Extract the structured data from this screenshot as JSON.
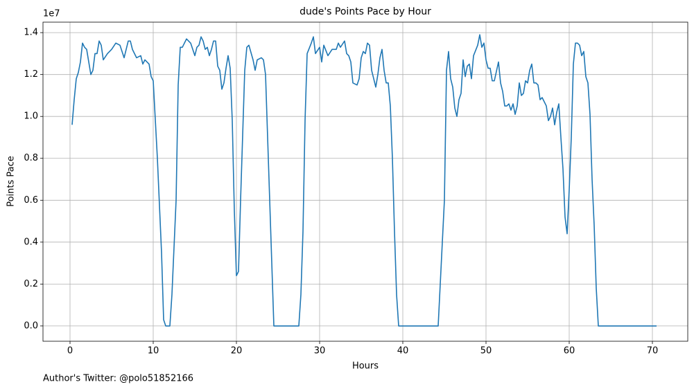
{
  "chart_data": {
    "type": "line",
    "title": "dude's Points Pace by Hour",
    "x_label": "Hours",
    "y_label": "Points Pace",
    "y_offset_label": "1e7",
    "footnote": "Author's Twitter: @polo51852166",
    "color": "#1f77b4",
    "grid": true,
    "xlim": [
      -3.25,
      74.25
    ],
    "ylim": [
      -0.073,
      1.45
    ],
    "xticks": [
      0,
      10,
      20,
      30,
      40,
      50,
      60,
      70
    ],
    "yticks": [
      {
        "value": 0,
        "label": "0.0"
      },
      0.2,
      0.4,
      0.6,
      0.8,
      {
        "value": 1,
        "label": "1.0"
      },
      1.2,
      1.4
    ],
    "x": [
      0.25,
      0.5,
      0.75,
      1,
      1.25,
      1.5,
      1.75,
      2,
      2.25,
      2.5,
      2.75,
      3,
      3.25,
      3.5,
      3.75,
      4,
      4.5,
      5,
      5.5,
      6,
      6.5,
      7,
      7.25,
      7.5,
      8,
      8.5,
      8.75,
      9,
      9.5,
      9.75,
      10,
      10.5,
      11,
      11.25,
      11.5,
      12,
      12.25,
      12.75,
      13,
      13.25,
      13.5,
      14,
      14.5,
      15,
      15.25,
      15.5,
      15.75,
      16,
      16.25,
      16.5,
      16.75,
      17,
      17.25,
      17.5,
      17.75,
      18,
      18.25,
      18.5,
      18.75,
      19,
      19.25,
      19.5,
      19.75,
      20,
      20.25,
      20.5,
      21,
      21.25,
      21.5,
      22,
      22.25,
      22.5,
      23,
      23.25,
      23.5,
      24,
      24.25,
      24.5,
      27.5,
      27.75,
      28,
      28.25,
      28.5,
      29,
      29.25,
      29.5,
      30,
      30.25,
      30.5,
      31,
      31.5,
      32,
      32.25,
      32.5,
      33,
      33.25,
      33.5,
      33.75,
      34,
      34.5,
      34.75,
      35,
      35.25,
      35.5,
      35.75,
      36,
      36.25,
      36.75,
      37,
      37.25,
      37.5,
      37.75,
      38,
      38.25,
      38.5,
      38.75,
      39,
      39.25,
      39.5,
      44.25,
      44.5,
      45,
      45.25,
      45.5,
      45.75,
      46,
      46.25,
      46.5,
      46.75,
      47,
      47.25,
      47.5,
      47.75,
      48,
      48.25,
      48.5,
      49,
      49.25,
      49.5,
      49.75,
      50,
      50.25,
      50.5,
      50.75,
      51,
      51.5,
      51.75,
      52,
      52.25,
      52.5,
      52.75,
      53,
      53.25,
      53.5,
      53.75,
      54,
      54.25,
      54.5,
      54.75,
      55,
      55.25,
      55.5,
      55.75,
      56,
      56.25,
      56.5,
      56.75,
      57,
      57.25,
      57.5,
      57.75,
      58,
      58.25,
      58.5,
      58.75,
      59,
      59.25,
      59.5,
      59.75,
      60,
      60.25,
      60.5,
      60.75,
      61,
      61.25,
      61.5,
      61.75,
      62,
      62.25,
      62.5,
      62.75,
      63,
      63.25,
      63.5,
      70.5
    ],
    "values": [
      0.96,
      1.08,
      1.18,
      1.21,
      1.26,
      1.35,
      1.33,
      1.32,
      1.26,
      1.2,
      1.22,
      1.3,
      1.3,
      1.36,
      1.34,
      1.27,
      1.3,
      1.32,
      1.35,
      1.34,
      1.28,
      1.36,
      1.36,
      1.32,
      1.28,
      1.29,
      1.25,
      1.27,
      1.25,
      1.19,
      1.17,
      0.8,
      0.35,
      0.03,
      0,
      0,
      0.15,
      0.6,
      1.15,
      1.33,
      1.33,
      1.37,
      1.35,
      1.29,
      1.33,
      1.34,
      1.38,
      1.36,
      1.32,
      1.33,
      1.29,
      1.32,
      1.36,
      1.36,
      1.24,
      1.22,
      1.13,
      1.16,
      1.23,
      1.29,
      1.23,
      0.98,
      0.55,
      0.24,
      0.26,
      0.6,
      1.22,
      1.33,
      1.34,
      1.27,
      1.22,
      1.27,
      1.28,
      1.27,
      1.2,
      0.6,
      0.3,
      0,
      0,
      0.15,
      0.45,
      0.98,
      1.3,
      1.35,
      1.38,
      1.3,
      1.33,
      1.26,
      1.34,
      1.29,
      1.32,
      1.32,
      1.35,
      1.33,
      1.36,
      1.3,
      1.29,
      1.26,
      1.16,
      1.15,
      1.18,
      1.28,
      1.31,
      1.3,
      1.35,
      1.34,
      1.22,
      1.14,
      1.2,
      1.28,
      1.32,
      1.22,
      1.16,
      1.16,
      1.05,
      0.8,
      0.45,
      0.15,
      0,
      0,
      0.2,
      0.6,
      1.22,
      1.31,
      1.18,
      1.14,
      1.04,
      1,
      1.08,
      1.11,
      1.27,
      1.19,
      1.24,
      1.25,
      1.18,
      1.29,
      1.34,
      1.39,
      1.33,
      1.35,
      1.27,
      1.23,
      1.23,
      1.17,
      1.17,
      1.26,
      1.16,
      1.12,
      1.05,
      1.05,
      1.06,
      1.03,
      1.06,
      1.01,
      1.05,
      1.16,
      1.1,
      1.11,
      1.17,
      1.16,
      1.22,
      1.25,
      1.16,
      1.16,
      1.15,
      1.08,
      1.09,
      1.07,
      1.05,
      0.98,
      1,
      1.04,
      0.96,
      1.02,
      1.06,
      0.9,
      0.75,
      0.52,
      0.44,
      0.65,
      0.9,
      1.25,
      1.35,
      1.35,
      1.34,
      1.29,
      1.31,
      1.19,
      1.16,
      1.01,
      0.7,
      0.48,
      0.18,
      0,
      0
    ]
  }
}
